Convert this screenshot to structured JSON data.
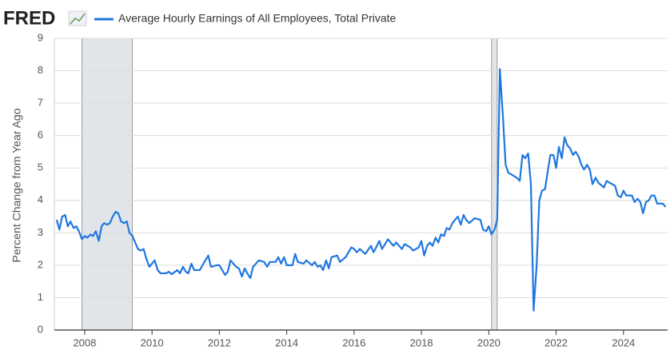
{
  "chart_data": {
    "type": "line",
    "logo": "FRED",
    "ylabel": "Percent Change from Year Ago",
    "x": [
      2007.17,
      2007.25,
      2007.33,
      2007.42,
      2007.5,
      2007.58,
      2007.67,
      2007.75,
      2007.83,
      2007.92,
      2008.0,
      2008.08,
      2008.17,
      2008.25,
      2008.33,
      2008.42,
      2008.5,
      2008.58,
      2008.67,
      2008.75,
      2008.83,
      2008.92,
      2009.0,
      2009.08,
      2009.17,
      2009.25,
      2009.33,
      2009.42,
      2009.5,
      2009.58,
      2009.67,
      2009.75,
      2009.83,
      2009.92,
      2010.0,
      2010.08,
      2010.17,
      2010.25,
      2010.42,
      2010.5,
      2010.58,
      2010.75,
      2010.83,
      2010.92,
      2011.0,
      2011.08,
      2011.17,
      2011.25,
      2011.42,
      2011.5,
      2011.67,
      2011.75,
      2011.92,
      2012.0,
      2012.17,
      2012.25,
      2012.33,
      2012.5,
      2012.58,
      2012.67,
      2012.75,
      2012.83,
      2012.92,
      2013.0,
      2013.17,
      2013.33,
      2013.42,
      2013.5,
      2013.67,
      2013.75,
      2013.83,
      2013.92,
      2014.0,
      2014.17,
      2014.25,
      2014.33,
      2014.5,
      2014.58,
      2014.75,
      2014.83,
      2014.92,
      2015.0,
      2015.08,
      2015.17,
      2015.25,
      2015.33,
      2015.5,
      2015.58,
      2015.75,
      2015.92,
      2016.0,
      2016.08,
      2016.17,
      2016.33,
      2016.5,
      2016.58,
      2016.75,
      2016.83,
      2016.92,
      2017.0,
      2017.17,
      2017.25,
      2017.42,
      2017.5,
      2017.67,
      2017.75,
      2017.92,
      2018.0,
      2018.08,
      2018.17,
      2018.25,
      2018.33,
      2018.42,
      2018.5,
      2018.58,
      2018.67,
      2018.75,
      2018.83,
      2018.92,
      2019.0,
      2019.08,
      2019.17,
      2019.25,
      2019.33,
      2019.42,
      2019.58,
      2019.75,
      2019.83,
      2019.92,
      2020.0,
      2020.08,
      2020.17,
      2020.25,
      2020.33,
      2020.42,
      2020.5,
      2020.58,
      2020.67,
      2020.83,
      2020.92,
      2021.0,
      2021.08,
      2021.17,
      2021.25,
      2021.33,
      2021.42,
      2021.5,
      2021.58,
      2021.67,
      2021.75,
      2021.83,
      2021.92,
      2022.0,
      2022.08,
      2022.17,
      2022.25,
      2022.33,
      2022.42,
      2022.5,
      2022.58,
      2022.67,
      2022.75,
      2022.83,
      2022.92,
      2023.0,
      2023.08,
      2023.17,
      2023.25,
      2023.42,
      2023.5,
      2023.58,
      2023.75,
      2023.83,
      2023.92,
      2024.0,
      2024.08,
      2024.25,
      2024.33,
      2024.42,
      2024.5,
      2024.58,
      2024.67,
      2024.75,
      2024.83,
      2024.92,
      2025.0,
      2025.17,
      2025.25
    ],
    "series": [
      {
        "name": "Average Hourly Earnings of All Employees, Total Private",
        "color": "#1f77e0",
        "values": [
          3.4,
          3.1,
          3.5,
          3.55,
          3.2,
          3.35,
          3.15,
          3.2,
          3.05,
          2.8,
          2.9,
          2.85,
          2.95,
          2.9,
          3.05,
          2.75,
          3.2,
          3.3,
          3.25,
          3.3,
          3.5,
          3.65,
          3.6,
          3.35,
          3.3,
          3.35,
          3.0,
          2.9,
          2.7,
          2.5,
          2.45,
          2.5,
          2.2,
          1.95,
          2.05,
          2.15,
          1.85,
          1.75,
          1.75,
          1.8,
          1.72,
          1.85,
          1.75,
          1.95,
          1.8,
          1.75,
          2.05,
          1.85,
          1.85,
          2.0,
          2.3,
          1.95,
          2.0,
          2.0,
          1.7,
          1.8,
          2.15,
          1.95,
          1.9,
          1.65,
          1.9,
          1.75,
          1.6,
          1.95,
          2.15,
          2.1,
          1.95,
          2.1,
          2.1,
          2.25,
          2.05,
          2.25,
          2.0,
          2.0,
          2.35,
          2.1,
          2.05,
          2.15,
          2.0,
          2.1,
          1.95,
          2.0,
          1.85,
          2.15,
          1.9,
          2.25,
          2.3,
          2.1,
          2.25,
          2.55,
          2.5,
          2.4,
          2.5,
          2.35,
          2.6,
          2.4,
          2.75,
          2.5,
          2.65,
          2.8,
          2.6,
          2.7,
          2.5,
          2.65,
          2.55,
          2.45,
          2.55,
          2.75,
          2.3,
          2.6,
          2.7,
          2.6,
          2.85,
          2.7,
          2.95,
          2.9,
          3.15,
          3.1,
          3.3,
          3.4,
          3.5,
          3.25,
          3.55,
          3.4,
          3.3,
          3.45,
          3.4,
          3.1,
          3.05,
          3.2,
          2.95,
          3.1,
          3.4,
          8.05,
          6.6,
          5.1,
          4.85,
          4.8,
          4.7,
          4.6,
          5.4,
          5.3,
          5.45,
          4.5,
          0.6,
          2.0,
          4.0,
          4.3,
          4.35,
          4.9,
          5.4,
          5.4,
          5.0,
          5.65,
          5.3,
          5.95,
          5.7,
          5.6,
          5.4,
          5.5,
          5.35,
          5.1,
          4.95,
          5.1,
          4.95,
          4.5,
          4.7,
          4.55,
          4.4,
          4.6,
          4.55,
          4.45,
          4.15,
          4.1,
          4.3,
          4.15,
          4.15,
          3.95,
          4.05,
          3.95,
          3.6,
          3.95,
          4.0,
          4.15,
          4.15,
          3.9,
          3.9,
          3.8
        ]
      }
    ],
    "recessions": [
      [
        2007.917,
        2009.417
      ],
      [
        2020.083,
        2020.25
      ]
    ],
    "xlim": [
      2007.1,
      2025.31
    ],
    "xticks": [
      2008,
      2010,
      2012,
      2014,
      2016,
      2018,
      2020,
      2022,
      2024
    ],
    "ylim": [
      0,
      9
    ],
    "yticks": [
      0,
      1,
      2,
      3,
      4,
      5,
      6,
      7,
      8,
      9
    ],
    "grid": true
  }
}
